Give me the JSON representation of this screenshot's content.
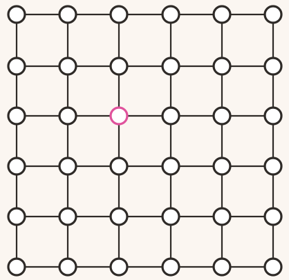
{
  "game": {
    "type": "grid-graph",
    "rows": 6,
    "cols": 6,
    "selected_node": {
      "row": 2,
      "col": 2
    },
    "colors": {
      "background": "#fbf6f1",
      "line": "#2e2a27",
      "node_fill": "#ffffff",
      "node_stroke": "#2e2a27",
      "selected_stroke": "#e0529c"
    }
  }
}
